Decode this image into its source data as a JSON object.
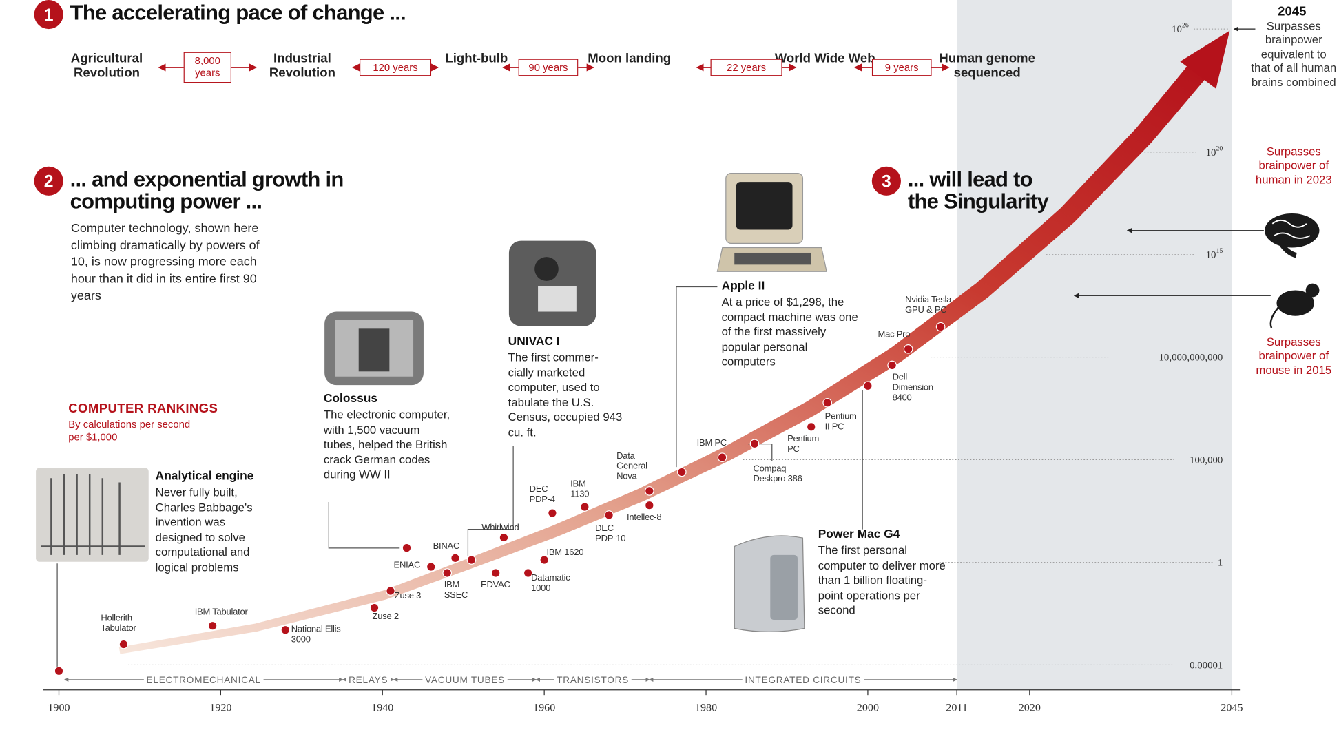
{
  "sections": [
    {
      "number": "1",
      "title": "The accelerating pace of change ..."
    },
    {
      "number": "2",
      "title": "... and exponential growth in computing power ...",
      "text": "Computer technology, shown here climbing dramatically by powers of 10, is now progressing more each hour than it did in its entire first 90 years"
    },
    {
      "number": "3",
      "title": "... will lead to the Singularity"
    }
  ],
  "timeline": {
    "events": [
      "Agricultural Revolution",
      "Industrial Revolution",
      "Light-bulb",
      "Moon landing",
      "World Wide Web",
      "Human genome sequenced"
    ],
    "gaps": [
      "8,000 years",
      "120 years",
      "90 years",
      "22 years",
      "9 years"
    ]
  },
  "annotations": [
    {
      "title": "Analytical engine",
      "text": "Never fully built, Charles Babbage's invention was designed to solve computational and logical problems"
    },
    {
      "title": "Colossus",
      "text": "The electronic computer, with 1,500 vacuum tubes, helped the British crack German codes during WW II"
    },
    {
      "title": "UNIVAC I",
      "text": "The first commer-cially marketed computer, used to tabulate the U.S. Census, occupied 943 cu. ft."
    },
    {
      "title": "Apple II",
      "text": "At a price of $1,298, the compact machine was one of the first massively popular personal computers"
    },
    {
      "title": "Power Mac G4",
      "text": "The first personal computer to deliver more than 1 billion floating-point operations per second"
    }
  ],
  "milestones": [
    {
      "title": "2045",
      "text": "Surpasses brainpower equivalent to that of all human brains combined",
      "level": 1e+26
    },
    {
      "text": "Surpasses brainpower of human in 2023",
      "level": 1.5e+16
    },
    {
      "text": "Surpasses brainpower of mouse in 2015",
      "level": 10000000000000.0
    }
  ],
  "chart_data": {
    "type": "scatter",
    "title": "COMPUTER RANKINGS",
    "subtitle": "By calculations per second per $1,000",
    "color": "#b5121b",
    "log_scale": true,
    "x": [
      1900,
      1908,
      1919,
      1928,
      1939,
      1941,
      1946,
      1943,
      1949,
      1948,
      1951,
      1955,
      1954,
      1958,
      1960,
      1961,
      1965,
      1968,
      1973,
      1973,
      1977,
      1982,
      1986,
      1993,
      1995,
      2000,
      2003,
      2005,
      2009
    ],
    "values": [
      5e-06,
      0.0001,
      0.0008,
      0.0005,
      0.006,
      0.04,
      0.6,
      5,
      1.6,
      0.3,
      1.3,
      16,
      0.3,
      0.3,
      1.3,
      250,
      500,
      200,
      3000,
      600,
      25000,
      130000,
      600000,
      4000000,
      60000000,
      400000000,
      4000000000,
      25000000000,
      300000000000
    ],
    "point_labels": [
      null,
      "Hollerith Tabulator",
      "IBM Tabulator",
      "National Ellis 3000",
      "Zuse 2",
      "Zuse 3",
      "ENIAC",
      null,
      "BINAC",
      "IBM SSEC",
      null,
      "Whirlwind",
      "EDVAC",
      "Datamatic 1000",
      "IBM 1620",
      "DEC PDP-4",
      "IBM 1130",
      "DEC PDP-10",
      "Data General Nova",
      "Intellec-8",
      null,
      "IBM PC",
      "Compaq Deskpro 386",
      "Pentium PC",
      "Pentium II PC",
      null,
      "Dell Dimension 8400",
      "Mac Pro",
      "Nvidia Tesla GPU & PC"
    ],
    "xlim": [
      1898,
      2046
    ],
    "ylim": [
      6e-07,
      3e+27
    ],
    "xticks": [
      1900,
      1920,
      1940,
      1960,
      1980,
      2000,
      2011,
      2020,
      2045
    ],
    "yticks": [
      1e-05,
      1,
      {
        "value": 100000,
        "label": "100,000"
      },
      {
        "value": 10000000000,
        "label": "10,000,000,000"
      },
      {
        "value": 1000000000000000.0,
        "label": "10",
        "sup": "15"
      },
      {
        "value": 1e+20,
        "label": "10",
        "sup": "20"
      },
      {
        "value": 1e+26,
        "label": "10",
        "sup": "26"
      }
    ],
    "grid": true,
    "eras": [
      {
        "label": "ELECTROMECHANICAL",
        "start": 1900.7,
        "end": 1935.1
      },
      {
        "label": "RELAYS",
        "start": 1935.1,
        "end": 1941.4
      },
      {
        "label": "VACUUM TUBES",
        "start": 1941.4,
        "end": 1959
      },
      {
        "label": "TRANSISTORS",
        "start": 1959,
        "end": 1973
      },
      {
        "label": "INTEGRATED CIRCUITS",
        "start": 1973,
        "end": 2011
      }
    ]
  }
}
